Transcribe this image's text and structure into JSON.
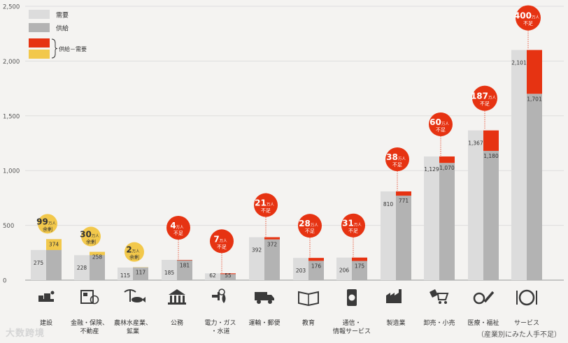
{
  "legend": {
    "demand": "需要",
    "supply": "供給",
    "diff": "供給－需要"
  },
  "units": {
    "man": "万人",
    "shortage": "不足",
    "surplus": "余剰"
  },
  "source_note": "（産業別にみた人手不足）",
  "watermark": "大数跨境",
  "colors": {
    "demand": "#dcdcdc",
    "supply": "#b3b3b3",
    "shortage": "#e63312",
    "surplus": "#f2c84b"
  },
  "chart_data": {
    "type": "bar",
    "ylim": [
      0,
      2500
    ],
    "yticks": [
      "0",
      "500",
      "1,000",
      "1,500",
      "2,000",
      "2,500"
    ],
    "categories": [
      "建設",
      "金融・保険、\n不動産",
      "農林水産業、\n鉱業",
      "公務",
      "電力・ガス\n・水道",
      "運輸・郵便",
      "教育",
      "通信・\n情報サービス",
      "製造業",
      "卸売・小売",
      "医療・福祉",
      "サービス"
    ],
    "icons": [
      "construction-icon",
      "finance-icon",
      "agriculture-icon",
      "government-icon",
      "utilities-icon",
      "transport-icon",
      "education-icon",
      "telecom-icon",
      "manufacturing-icon",
      "retail-icon",
      "medical-icon",
      "service-icon"
    ],
    "series": [
      {
        "name": "需要",
        "values": [
          275,
          228,
          115,
          185,
          62,
          392,
          203,
          206,
          810,
          1129,
          1367,
          2101
        ]
      },
      {
        "name": "供給",
        "values": [
          374,
          258,
          117,
          181,
          55,
          372,
          176,
          175,
          771,
          1070,
          1180,
          1701
        ]
      }
    ],
    "value_labels": {
      "demand": [
        "275",
        "228",
        "115",
        "185",
        "62",
        "392",
        "203",
        "206",
        "810",
        "1,129",
        "1,367",
        "2,101"
      ],
      "supply": [
        "374",
        "258",
        "117",
        "181",
        "55",
        "372",
        "176",
        "175",
        "771",
        "1,070",
        "1,180",
        "1,701"
      ]
    },
    "gap": [
      {
        "value": "99",
        "type": "余剰"
      },
      {
        "value": "30",
        "type": "余剰"
      },
      {
        "value": "2",
        "type": "余剰"
      },
      {
        "value": "4",
        "type": "不足"
      },
      {
        "value": "7",
        "type": "不足"
      },
      {
        "value": "21",
        "type": "不足"
      },
      {
        "value": "28",
        "type": "不足"
      },
      {
        "value": "31",
        "type": "不足"
      },
      {
        "value": "38",
        "type": "不足"
      },
      {
        "value": "60",
        "type": "不足"
      },
      {
        "value": "187",
        "type": "不足"
      },
      {
        "value": "400",
        "type": "不足"
      }
    ]
  }
}
